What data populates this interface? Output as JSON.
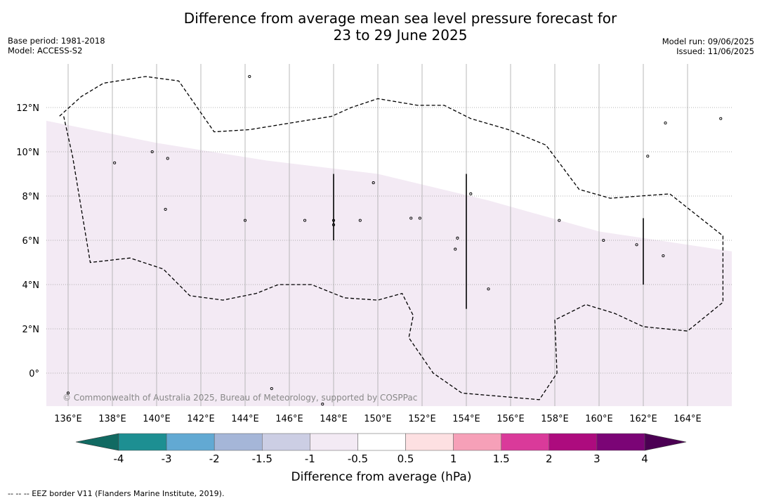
{
  "title_line1": "Difference from average mean sea level pressure forecast for",
  "title_line2": "23 to 29 June 2025",
  "base_period": "Base period: 1981-2018",
  "model": "Model: ACCESS-S2",
  "model_run": "Model run: 09/06/2025",
  "issued": "Issued: 11/06/2025",
  "credit": "© Commonwealth of Australia 2025, Bureau of Meteorology, supported by COSPPac",
  "footnote": "--  --  -- EEZ border V11 (Flanders Marine Institute, 2019).",
  "longitude_labels": [
    {
      "lon": 136,
      "label": "136°E"
    },
    {
      "lon": 138,
      "label": "138°E"
    },
    {
      "lon": 140,
      "label": "140°E"
    },
    {
      "lon": 142,
      "label": "142°E"
    },
    {
      "lon": 144,
      "label": "144°E"
    },
    {
      "lon": 146,
      "label": "146°E"
    },
    {
      "lon": 148,
      "label": "148°E"
    },
    {
      "lon": 150,
      "label": "150°E"
    },
    {
      "lon": 152,
      "label": "152°E"
    },
    {
      "lon": 154,
      "label": "154°E"
    },
    {
      "lon": 156,
      "label": "156°E"
    },
    {
      "lon": 158,
      "label": "158°E"
    },
    {
      "lon": 160,
      "label": "160°E"
    },
    {
      "lon": 162,
      "label": "162°E"
    },
    {
      "lon": 164,
      "label": "164°E"
    }
  ],
  "latitude_labels": [
    {
      "lat": 12,
      "label": "12°N"
    },
    {
      "lat": 10,
      "label": "10°N"
    },
    {
      "lat": 8,
      "label": "8°N"
    },
    {
      "lat": 6,
      "label": "6°N"
    },
    {
      "lat": 4,
      "label": "4°N"
    },
    {
      "lat": 2,
      "label": "2°N"
    },
    {
      "lat": 0,
      "label": "0°"
    }
  ],
  "map_extent": {
    "lon_min": 135,
    "lon_max": 166,
    "lat_min": -1.5,
    "lat_max": 14
  },
  "shading": {
    "category": "-1 to -0.5",
    "color": "#f3eaf4",
    "northern_boundary": [
      [
        135,
        11.4
      ],
      [
        140,
        10.4
      ],
      [
        145,
        9.6
      ],
      [
        150,
        9.0
      ],
      [
        155,
        7.8
      ],
      [
        160,
        6.4
      ],
      [
        166,
        5.5
      ]
    ]
  },
  "eez_border": [
    [
      135.8,
      11.6
    ],
    [
      136.2,
      9.8
    ],
    [
      137.0,
      5.0
    ],
    [
      138.8,
      5.2
    ],
    [
      140.3,
      4.7
    ],
    [
      141.5,
      3.5
    ],
    [
      143.0,
      3.3
    ],
    [
      144.5,
      3.6
    ],
    [
      145.5,
      4.0
    ],
    [
      147.0,
      4.0
    ],
    [
      148.5,
      3.4
    ],
    [
      150.0,
      3.3
    ],
    [
      151.1,
      3.6
    ],
    [
      151.6,
      2.6
    ],
    [
      151.4,
      1.6
    ],
    [
      152.5,
      0.0
    ],
    [
      153.8,
      -0.9
    ],
    [
      157.3,
      -1.2
    ],
    [
      158.1,
      0.0
    ],
    [
      158.0,
      2.4
    ],
    [
      159.4,
      3.1
    ],
    [
      160.7,
      2.7
    ],
    [
      162.0,
      2.1
    ],
    [
      164.0,
      1.9
    ],
    [
      165.6,
      3.2
    ],
    [
      165.6,
      6.2
    ],
    [
      163.2,
      8.1
    ],
    [
      160.5,
      7.9
    ],
    [
      159.1,
      8.3
    ],
    [
      157.6,
      10.3
    ],
    [
      155.9,
      11.0
    ],
    [
      154.2,
      11.5
    ],
    [
      153.0,
      12.1
    ],
    [
      151.8,
      12.1
    ],
    [
      150.0,
      12.4
    ],
    [
      148.8,
      12.0
    ],
    [
      147.9,
      11.6
    ],
    [
      144.2,
      11.0
    ],
    [
      142.6,
      10.9
    ],
    [
      141.0,
      13.2
    ],
    [
      139.5,
      13.4
    ],
    [
      137.6,
      13.1
    ],
    [
      136.6,
      12.5
    ],
    [
      135.6,
      11.6
    ]
  ],
  "scale_segments": [
    {
      "lon": 148,
      "lat_from": 6.0,
      "lat_to": 9.0
    },
    {
      "lon": 154,
      "lat_from": 2.9,
      "lat_to": 9.0
    },
    {
      "lon": 162,
      "lat_from": 4.0,
      "lat_to": 7.0
    }
  ],
  "islands": [
    [
      144.2,
      13.4
    ],
    [
      138.1,
      9.5
    ],
    [
      139.8,
      10.0
    ],
    [
      140.5,
      9.7
    ],
    [
      140.4,
      7.4
    ],
    [
      144.0,
      6.9
    ],
    [
      146.7,
      6.9
    ],
    [
      148.0,
      6.9
    ],
    [
      149.2,
      6.9
    ],
    [
      148.0,
      6.7
    ],
    [
      149.8,
      8.6
    ],
    [
      151.5,
      7.0
    ],
    [
      151.9,
      7.0
    ],
    [
      153.6,
      6.1
    ],
    [
      154.2,
      8.1
    ],
    [
      153.5,
      5.6
    ],
    [
      155.0,
      3.8
    ],
    [
      158.2,
      6.9
    ],
    [
      160.2,
      6.0
    ],
    [
      161.7,
      5.8
    ],
    [
      162.9,
      5.3
    ],
    [
      162.2,
      9.8
    ],
    [
      163.0,
      11.3
    ],
    [
      165.5,
      11.5
    ],
    [
      136.0,
      -0.9
    ],
    [
      147.5,
      -1.4
    ],
    [
      145.2,
      -0.7
    ]
  ],
  "colorbar": {
    "title": "Difference from average (hPa)",
    "low_extend_color": "#116a62",
    "high_extend_color": "#4b0053",
    "colors": [
      "#1d8f92",
      "#62a9d3",
      "#a5b6d8",
      "#cccee4",
      "#f3eaf4",
      "#ffffff",
      "#fde0e2",
      "#f6a0b8",
      "#da3a9a",
      "#ad0b7e",
      "#7b0476"
    ],
    "labels": [
      "-4",
      "-3",
      "-2",
      "-1.5",
      "-1",
      "-0.5",
      "0.5",
      "1",
      "1.5",
      "2",
      "3",
      "4"
    ]
  }
}
